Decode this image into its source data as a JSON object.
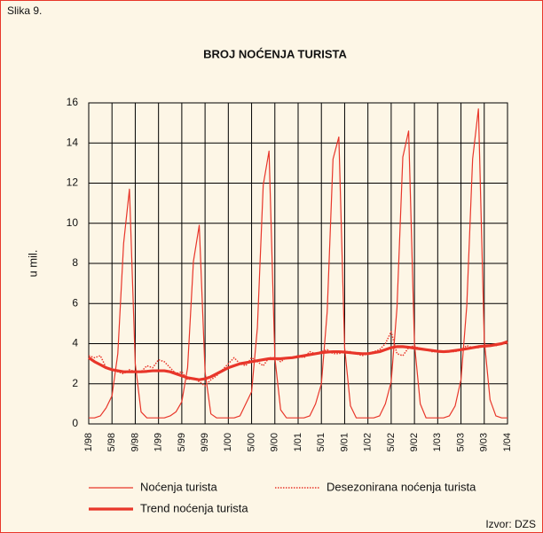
{
  "chart_data": {
    "type": "line",
    "figure_label": "Slika 9.",
    "title": "BROJ NOĆENJA TURISTA",
    "y_label": "u mil.",
    "source": "Izvor: DZS",
    "categories": [
      "1/98",
      null,
      null,
      null,
      "5/98",
      null,
      null,
      null,
      "9/98",
      null,
      null,
      null,
      "1/99",
      null,
      null,
      null,
      "5/99",
      null,
      null,
      null,
      "9/99",
      null,
      null,
      null,
      "1/00",
      null,
      null,
      null,
      "5/00",
      null,
      null,
      null,
      "9/00",
      null,
      null,
      null,
      "1/01",
      null,
      null,
      null,
      "5/01",
      null,
      null,
      null,
      "9/01",
      null,
      null,
      null,
      "1/02",
      null,
      null,
      null,
      "5/02",
      null,
      null,
      null,
      "9/02",
      null,
      null,
      null,
      "1/03",
      null,
      null,
      null,
      "5/03",
      null,
      null,
      null,
      "9/03",
      null,
      null,
      null,
      "1/04"
    ],
    "series": [
      {
        "name": "Noćenja turista",
        "color": "#e8362a",
        "line_style": "solid",
        "line_width": 1.2,
        "values": [
          0.3,
          0.3,
          0.4,
          0.8,
          1.4,
          3.5,
          9.0,
          11.7,
          3.0,
          0.6,
          0.3,
          0.3,
          0.3,
          0.3,
          0.4,
          0.6,
          1.1,
          2.8,
          8.1,
          9.9,
          2.6,
          0.5,
          0.3,
          0.3,
          0.3,
          0.3,
          0.4,
          1.0,
          1.6,
          4.8,
          11.9,
          13.6,
          3.3,
          0.7,
          0.3,
          0.3,
          0.3,
          0.3,
          0.4,
          1.0,
          2.0,
          5.6,
          13.2,
          14.3,
          3.8,
          0.9,
          0.3,
          0.3,
          0.3,
          0.3,
          0.4,
          1.0,
          2.1,
          5.8,
          13.3,
          14.6,
          4.0,
          1.0,
          0.3,
          0.3,
          0.3,
          0.3,
          0.4,
          0.9,
          2.2,
          5.9,
          13.2,
          15.7,
          4.2,
          1.2,
          0.4,
          0.3,
          0.3
        ]
      },
      {
        "name": "Desezonirana noćenja turista",
        "color": "#e8362a",
        "line_style": "dotted",
        "line_width": 1.5,
        "values": [
          3.4,
          3.3,
          3.4,
          2.8,
          2.7,
          2.6,
          2.5,
          2.7,
          2.6,
          2.6,
          2.9,
          2.8,
          3.2,
          3.1,
          2.8,
          2.5,
          2.6,
          2.2,
          2.3,
          2.1,
          1.9,
          2.2,
          2.4,
          2.7,
          3.0,
          3.3,
          3.0,
          2.9,
          3.3,
          3.1,
          2.9,
          3.3,
          3.3,
          3.1,
          3.3,
          3.3,
          3.4,
          3.3,
          3.6,
          3.5,
          3.6,
          3.7,
          3.5,
          3.5,
          3.6,
          3.6,
          3.5,
          3.4,
          3.5,
          3.6,
          3.7,
          4.0,
          4.6,
          3.5,
          3.4,
          3.8,
          3.9,
          3.7,
          3.7,
          3.6,
          3.6,
          3.6,
          3.6,
          3.6,
          3.7,
          3.9,
          3.8,
          3.8,
          3.9,
          3.9,
          3.9,
          4.0,
          4.0
        ]
      },
      {
        "name": "Trend noćenja turista",
        "color": "#e8362a",
        "line_style": "solid",
        "line_width": 3.2,
        "values": [
          3.3,
          3.1,
          2.95,
          2.8,
          2.7,
          2.65,
          2.6,
          2.6,
          2.6,
          2.6,
          2.62,
          2.65,
          2.65,
          2.65,
          2.6,
          2.5,
          2.4,
          2.3,
          2.25,
          2.2,
          2.25,
          2.35,
          2.5,
          2.65,
          2.8,
          2.9,
          3.0,
          3.05,
          3.1,
          3.15,
          3.2,
          3.25,
          3.25,
          3.25,
          3.28,
          3.3,
          3.35,
          3.4,
          3.45,
          3.5,
          3.55,
          3.58,
          3.6,
          3.6,
          3.58,
          3.55,
          3.52,
          3.5,
          3.5,
          3.55,
          3.6,
          3.7,
          3.8,
          3.85,
          3.85,
          3.82,
          3.78,
          3.74,
          3.7,
          3.66,
          3.62,
          3.6,
          3.62,
          3.66,
          3.7,
          3.75,
          3.8,
          3.85,
          3.88,
          3.9,
          3.95,
          4.0,
          4.1
        ]
      }
    ],
    "ylim": [
      0,
      16
    ],
    "yticks": [
      0,
      2,
      4,
      6,
      8,
      10,
      12,
      14,
      16
    ],
    "grid": true
  }
}
